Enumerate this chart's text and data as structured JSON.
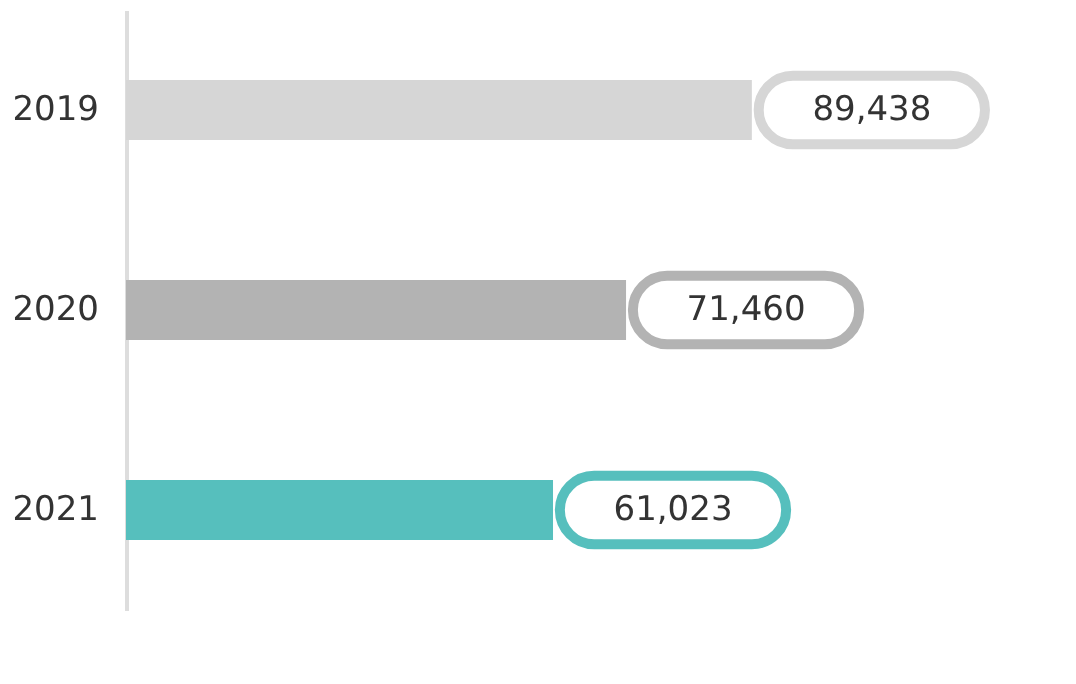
{
  "chart_data": {
    "type": "bar",
    "orientation": "horizontal",
    "categories": [
      "2019",
      "2020",
      "2021"
    ],
    "values": [
      89438,
      71460,
      61023
    ],
    "colors": [
      "#d6d6d6",
      "#b3b3b3",
      "#56bfbd"
    ],
    "value_labels": [
      "89,438",
      "71,460",
      "61,023"
    ],
    "grid": false
  }
}
